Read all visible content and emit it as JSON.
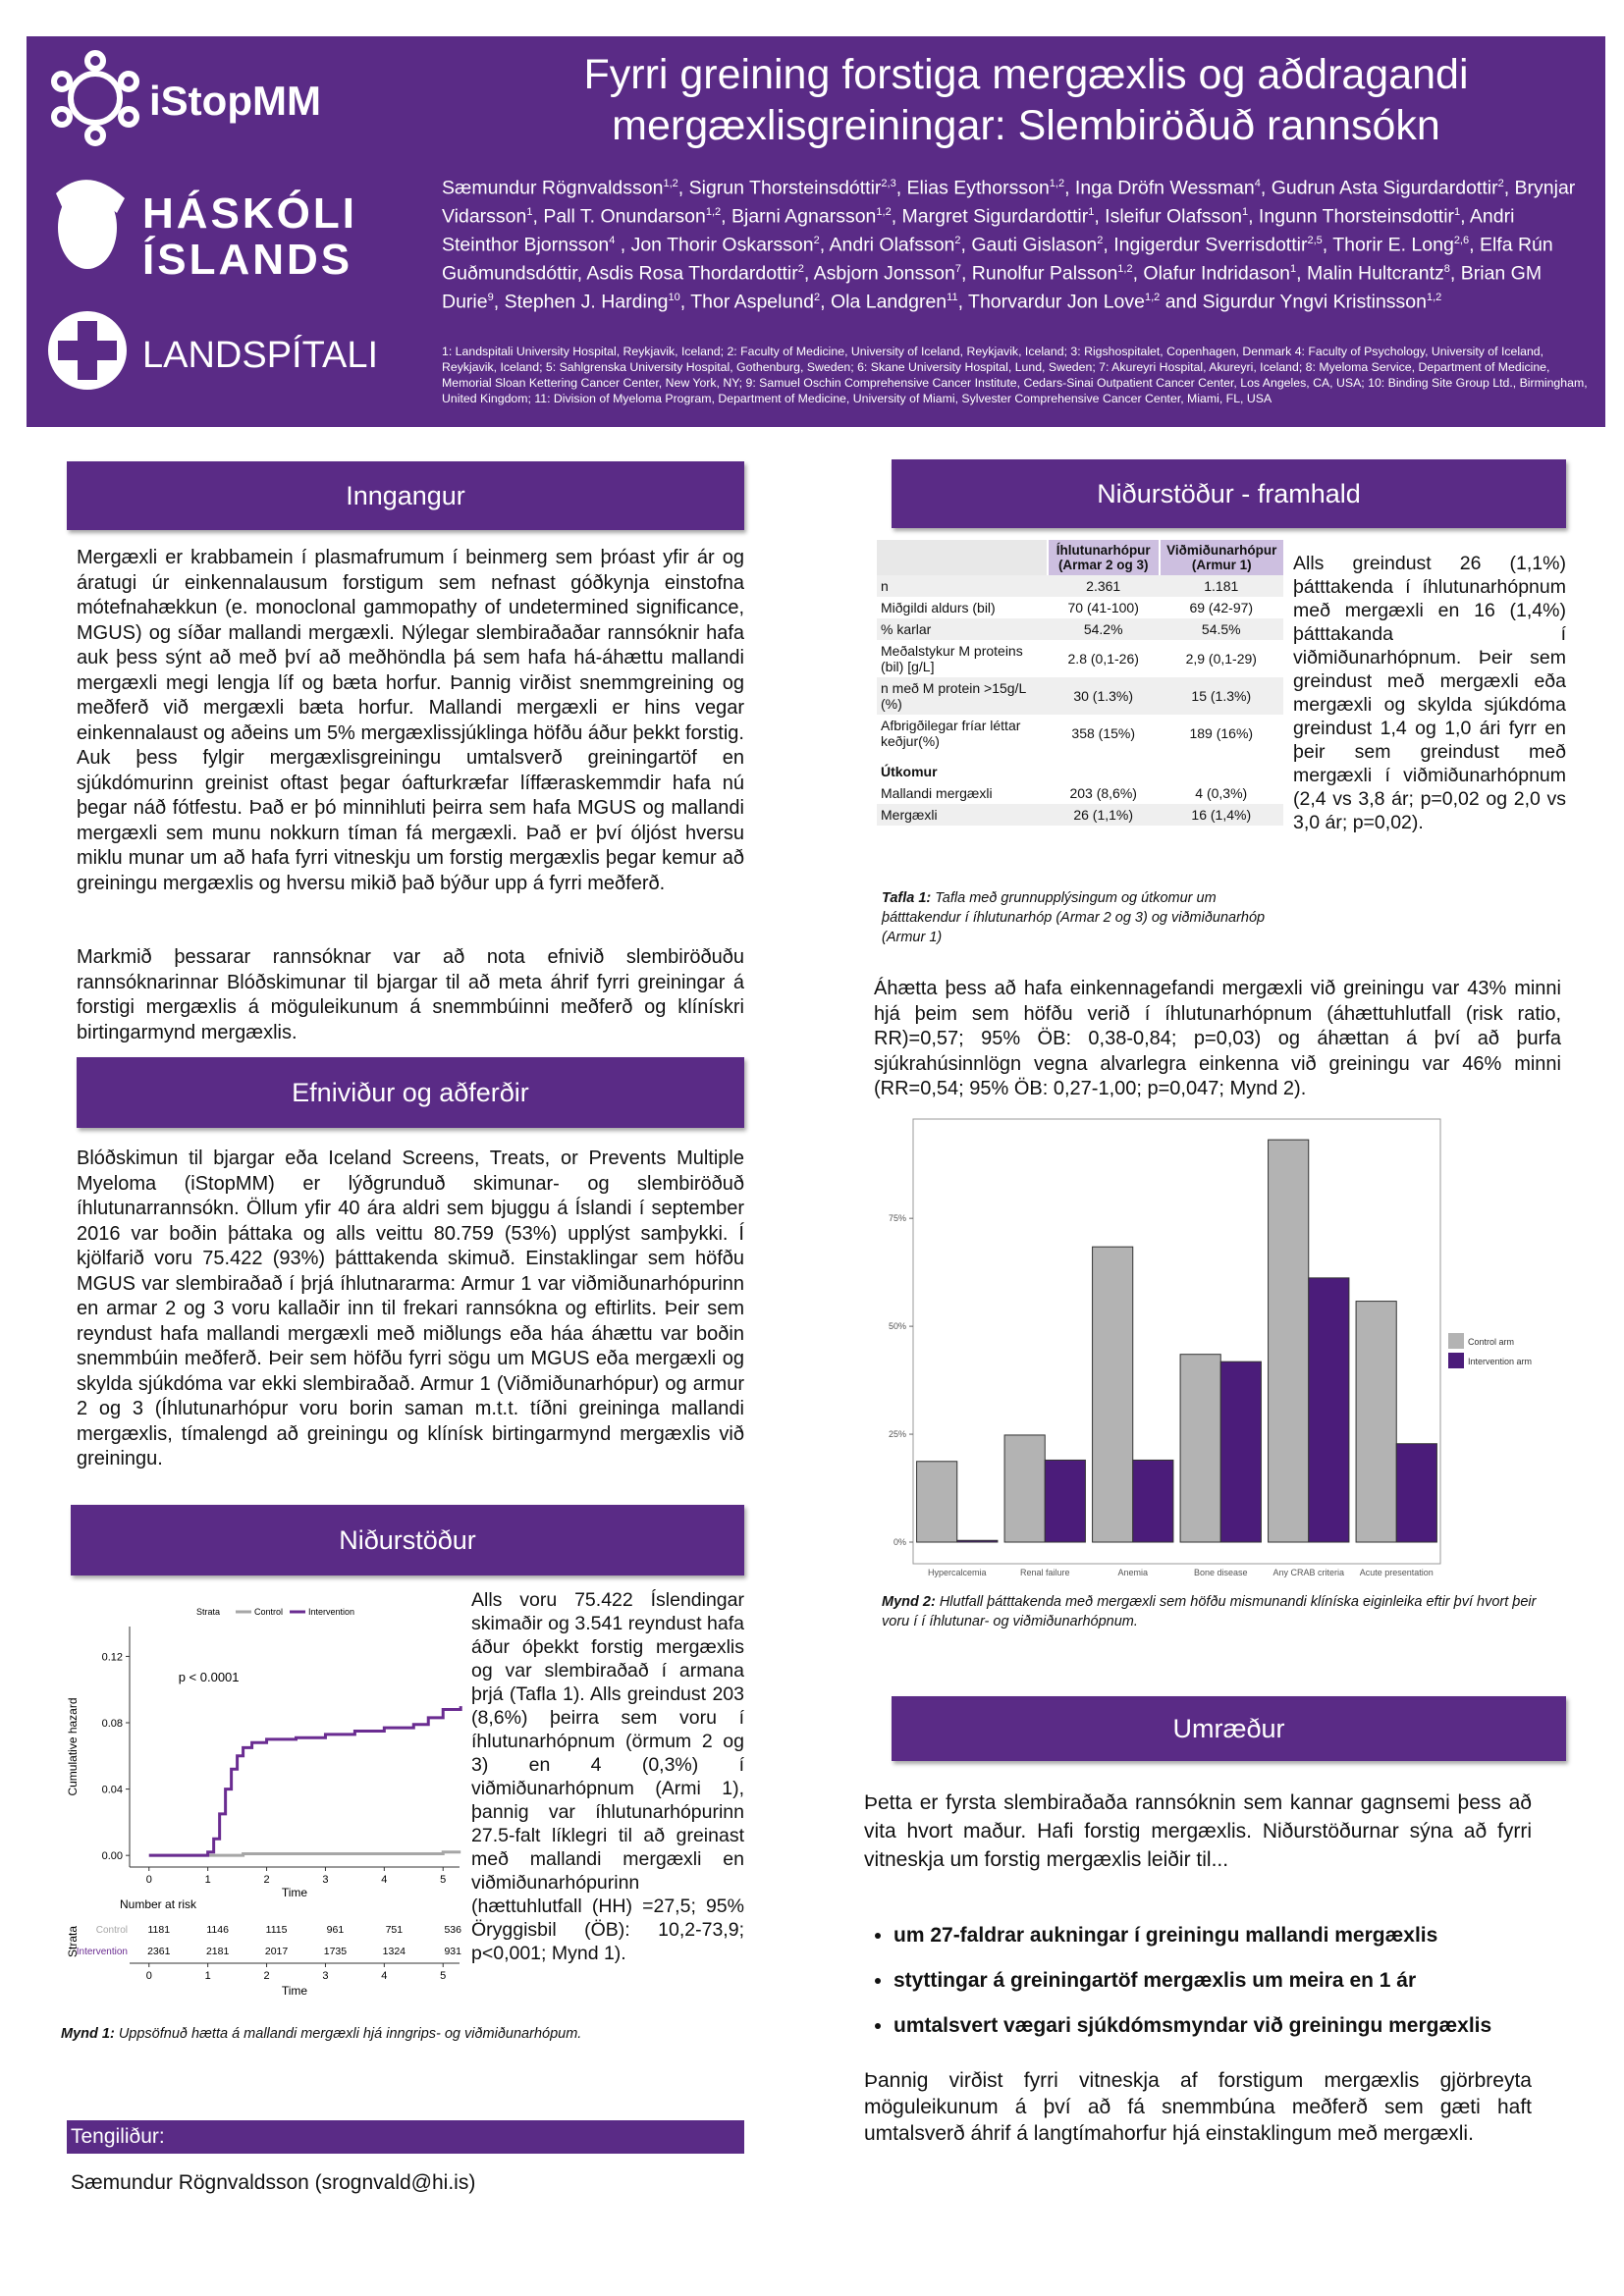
{
  "header": {
    "logos": {
      "istopmm": "iStopMM",
      "university": [
        "HÁSKÓLI",
        "ÍSLANDS"
      ],
      "hospital": "LANDSPÍTALI"
    },
    "title": "Fyrri greining forstiga mergæxlis og aðdragandi mergæxlisgreiningar: Slembiröðuð rannsókn",
    "authors": [
      {
        "text": "Sæmundur Rögnvaldsson",
        "sup": "1,2"
      },
      {
        "text": ", Sigrun Thorsteinsdóttir",
        "sup": "2,3"
      },
      {
        "text": ", Elias Eythorsson",
        "sup": "1,2"
      },
      {
        "text": ", Inga Dröfn Wessman",
        "sup": "4"
      },
      {
        "text": ", Gudrun Asta Sigurdardottir",
        "sup": "2"
      },
      {
        "text": ", Brynjar Vidarsson",
        "sup": "1"
      },
      {
        "text": ", Pall T. Onundarson",
        "sup": "1,2"
      },
      {
        "text": ", Bjarni Agnarsson",
        "sup": "1,2"
      },
      {
        "text": ", Margret Sigurdardottir",
        "sup": "1"
      },
      {
        "text": ", Isleifur Olafsson",
        "sup": "1"
      },
      {
        "text": ", Ingunn Thorsteinsdottir",
        "sup": "1"
      },
      {
        "text": ", Andri Steinthor Bjornsson",
        "sup": "4"
      },
      {
        "text": " , Jon Thorir Oskarsson",
        "sup": "2"
      },
      {
        "text": ", Andri Olafsson",
        "sup": "2"
      },
      {
        "text": ", Gauti Gislason",
        "sup": "2"
      },
      {
        "text": ", Ingigerdur Sverrisdottir",
        "sup": "2,5"
      },
      {
        "text": ", Thorir E. Long",
        "sup": "2,6"
      },
      {
        "text": ", Elfa Rún Guðmundsdóttir"
      },
      {
        "text": ", Asdis Rosa Thordardottir",
        "sup": "2"
      },
      {
        "text": ", Asbjorn Jonsson",
        "sup": "7"
      },
      {
        "text": ", Runolfur Palsson",
        "sup": "1,2"
      },
      {
        "text": ", Olafur Indridason",
        "sup": "1"
      },
      {
        "text": ", Malin Hultcrantz",
        "sup": "8"
      },
      {
        "text": ", Brian GM Durie",
        "sup": "9"
      },
      {
        "text": ", Stephen J. Harding",
        "sup": "10"
      },
      {
        "text": ", Thor Aspelund",
        "sup": "2"
      },
      {
        "text": ", Ola Landgren",
        "sup": "11"
      },
      {
        "text": ", Thorvardur Jon Love",
        "sup": "1,2"
      },
      {
        "text": " and Sigurdur Yngvi Kristinsson",
        "sup": "1,2"
      }
    ],
    "affiliations": "1: Landspitali University Hospital, Reykjavik, Iceland; 2: Faculty of Medicine, University of Iceland, Reykjavik, Iceland; 3: Rigshospitalet, Copenhagen, Denmark 4: Faculty of Psychology, University of Iceland, Reykjavik, Iceland; 5: Sahlgrenska University Hospital, Gothenburg, Sweden; 6: Skane University Hospital, Lund, Sweden; 7: Akureyri Hospital, Akureyri, Iceland; 8: Myeloma Service, Department of Medicine, Memorial Sloan Kettering Cancer Center, New York, NY; 9: Samuel Oschin Comprehensive Cancer Institute, Cedars-Sinai Outpatient Cancer Center, Los Angeles, CA, USA; 10: Binding Site Group Ltd., Birmingham, United Kingdom; 11: Division of Myeloma Program, Department of Medicine, University of Miami, Sylvester Comprehensive Cancer Center, Miami, FL, USA"
  },
  "intro": {
    "heading": "Inngangur",
    "paragraphs": [
      "Mergæxli er krabbamein í plasmafrumum í beinmerg sem þróast yfir ár og áratugi úr einkennalausum forstigum sem nefnast góðkynja einstofna mótefnahækkun (e. monoclonal gammopathy of undetermined significance, MGUS) og síðar mallandi mergæxli. Nýlegar slembiraðaðar rannsóknir hafa auk þess sýnt að með því að meðhöndla þá sem hafa há-áhættu mallandi mergæxli megi lengja líf og bæta horfur. Þannig virðist snemmgreining og meðferð við mergæxli bæta horfur. Mallandi mergæxli er hins vegar einkennalaust og aðeins um 5% mergæxlissjúklinga höfðu áður þekkt forstig. Auk þess fylgir mergæxlisgreiningu umtalsverð greiningartöf en sjúkdómurinn greinist oftast þegar óafturkræfar líffæraskemmdir hafa nú þegar náð fótfestu. Það er þó minnihluti þeirra sem hafa MGUS og mallandi mergæxli sem munu nokkurn tíman fá mergæxli. Það er því óljóst hversu miklu munar um að hafa fyrri vitneskju um forstig mergæxlis þegar kemur að greiningu mergæxlis og hversu mikið það býður upp á fyrri meðferð.",
      "Markmið þessarar rannsóknar var að nota efnivið slembiröðuðu rannsóknarinnar Blóðskimunar til bjargar til að meta áhrif fyrri greiningar á forstigi mergæxlis á möguleikunum á snemmbúinni meðferð og klínískri birtingarmynd mergæxlis."
    ]
  },
  "methods": {
    "heading": "Efniviður og aðferðir",
    "paragraphs": [
      "Blóðskimun til bjargar eða Iceland Screens, Treats, or Prevents Multiple Myeloma (iStopMM) er lýðgrunduð skimunar- og slembiröðuð íhlutunarrannsókn. Öllum yfir 40 ára aldri sem bjuggu á Íslandi í september 2016 var boðin þáttaka og alls veittu 80.759 (53%) upplýst samþykki. Í kjölfarið voru 75.422 (93%) þátttakenda skimuð. Einstaklingar sem höfðu MGUS var slembiraðað í þrjá íhlutnararma: Armur 1 var viðmiðunarhópurinn en armar 2 og 3 voru kallaðir inn til frekari rannsókna og eftirlits. Þeir sem reyndust hafa mallandi mergæxli með miðlungs eða háa áhættu var boðin snemmbúin meðferð. Þeir sem höfðu fyrri sögu um MGUS eða mergæxli og skylda sjúkdóma var ekki slembiraðað. Armur 1 (Viðmiðunarhópur) og armur 2 og 3 (Íhlutunarhópur voru borin saman m.t.t. tíðni greininga mallandi mergæxlis, tímalengd að greiningu og klínísk birtingarmynd mergæxlis við greiningu."
    ]
  },
  "results": {
    "heading": "Niðurstöður",
    "text": "Alls voru 75.422 Íslendingar skimaðir og 3.541 reyndust hafa áður óþekkt forstig mergæxlis og var slembiraðað í armana þrjá (Tafla 1). Alls greindust 203 (8,6%) þeirra sem voru í íhlutunarhópnum (örmum 2 og 3) en 4 (0,3%) í viðmiðunarhópnum (Armi 1), þannig var íhlutunarhópurinn 27.5-falt líklegri til að greinast með mallandi mergæxli en viðmiðunarhópurinn (hættuhlutfall (HH) =27,5; 95% Öryggisbil (ÖB): 10,2-73,9; p<0,001; Mynd 1).",
    "figure_caption": {
      "label": "Mynd 1:",
      "text": "Uppsöfnuð hætta á mallandi mergæxli hjá inngrips- og viðmiðunarhópum."
    }
  },
  "results_cont": {
    "heading": "Niðurstöður - framhald",
    "text": "Alls greindust 26 (1,1%) þátttakenda í íhlutunarhópnum með mergæxli en 16 (1,4%) þátttakanda í viðmiðunarhópnum. Þeir sem greindust með mergæxli eða mergæxli og skylda sjúkdóma greindust 1,4 og 1,0 ári fyrr en þeir sem greindust með mergæxli í viðmiðunarhópnum (2,4 vs 3,8 ár; p=0,02 og 2,0 vs 3,0 ár; p=0,02).",
    "table": {
      "columns": [
        "Íhlutunarhópur (Armar 2 og 3)",
        "Viðmiðunarhópur (Armur 1)"
      ],
      "rows": [
        [
          "n",
          "2.361",
          "1.181"
        ],
        [
          "Miðgildi aldurs (bil)",
          "70 (41-100)",
          "69 (42-97)"
        ],
        [
          "% karlar",
          "54.2%",
          "54.5%"
        ],
        [
          "Meðalstykur M proteins (bil) [g/L]",
          "2.8 (0,1-26)",
          "2,9 (0,1-29)"
        ],
        [
          "n með M protein >15g/L (%)",
          "30 (1.3%)",
          "15 (1.3%)"
        ],
        [
          "Afbrigðilegar fríar léttar keðjur(%)",
          "358 (15%)",
          "189 (16%)"
        ],
        [
          "Útkomur"
        ],
        [
          "Mallandi mergæxli",
          "203 (8,6%)",
          "4 (0,3%)"
        ],
        [
          "Mergæxli",
          "26 (1,1%)",
          "16 (1,4%)"
        ]
      ]
    },
    "table_caption": {
      "label": "Tafla 1:",
      "text": "Tafla með grunnupplýsingum og útkomur um þátttakendur í íhlutunarhóp (Armar 2 og 3) og viðmiðunarhóp (Armur 1)"
    },
    "paragraph": "Áhætta þess að hafa einkennagefandi mergæxli við greiningu var 43% minni hjá þeim sem höfðu verið í íhlutunarhópnum (áhættuhlutfall (risk ratio, RR)=0,57; 95% ÖB: 0,38-0,84; p=0,03) og áhættan á því að þurfa sjúkrahúsinnlögn vegna alvarlegra einkenna við greiningu var 46% minni (RR=0,54; 95% ÖB: 0,27-1,00; p=0,047; Mynd 2).",
    "figure_caption": {
      "label": "Mynd 2:",
      "text": "Hlutfall þátttakenda með mergæxli sem höfðu mismunandi klíníska eiginleika eftir því hvort þeir voru í í íhlutunar- og viðmiðunarhópnum."
    }
  },
  "discussion": {
    "heading": "Umræður",
    "intro": "Þetta er fyrsta slembiraðaða rannsóknin sem kannar gagnsemi þess að vita hvort maður. Hafi forstig mergæxlis. Niðurstöðurnar sýna að fyrri vitneskja um forstig mergæxlis leiðir til...",
    "bullets": [
      "um 27-faldrar aukningar í greiningu mallandi mergæxlis",
      "styttingar á greiningartöf mergæxlis um meira en 1 ár",
      "umtalsvert vægari sjúkdómsmyndar við greiningu mergæxlis"
    ],
    "conclusion": "Þannig virðist fyrri vitneskja af forstigum mergæxlis gjörbreyta möguleikunum á því að fá snemmbúna meðferð sem gæti haft umtalsverð áhrif á langtímahorfur hjá einstaklingum með mergæxli."
  },
  "contact": {
    "heading": "Tengiliður:",
    "text": "Sæmundur Rögnvaldsson (srognvald@hi.is)"
  },
  "chart_data": [
    {
      "type": "line",
      "step": true,
      "legend_title": "Strata",
      "p_label": "p < 0.0001",
      "xlabel": "Time",
      "ylabel": "Cumulative hazard",
      "x": [
        0,
        0.8,
        1,
        1.1,
        1.2,
        1.3,
        1.4,
        1.5,
        1.6,
        1.75,
        2,
        2.5,
        3,
        3.5,
        4,
        4.5,
        4.75,
        5,
        5.3
      ],
      "series": [
        {
          "name": "Control",
          "color": "#a6a6a6",
          "values": [
            0,
            0,
            0,
            0,
            0,
            0,
            0,
            0,
            0.001,
            0.001,
            0.001,
            0.001,
            0.001,
            0.001,
            0.001,
            0.001,
            0.001,
            0.002,
            0.002
          ]
        },
        {
          "name": "Intervention",
          "color": "#6a2c91",
          "values": [
            0,
            0,
            0.002,
            0.01,
            0.025,
            0.04,
            0.052,
            0.06,
            0.065,
            0.068,
            0.07,
            0.071,
            0.073,
            0.075,
            0.077,
            0.079,
            0.083,
            0.088,
            0.09
          ]
        }
      ],
      "xlim": [
        -0.33,
        5.28
      ],
      "ylim": [
        -0.007,
        0.138
      ],
      "xticks": [
        0,
        1,
        2,
        3,
        4,
        5
      ],
      "yticks": [
        {
          "value": 0,
          "label": "0.00"
        },
        {
          "value": 0.04,
          "label": "0.04"
        },
        {
          "value": 0.08,
          "label": "0.08"
        },
        {
          "value": 0.12,
          "label": "0.12"
        }
      ],
      "risk_table": {
        "title": "Number at risk",
        "ylabel": "Strata",
        "xlabel": "Time",
        "xticks": [
          0,
          1,
          2,
          3,
          4,
          5
        ],
        "rows": [
          {
            "name": "Control",
            "color": "#a6a6a6",
            "values": [
              1181,
              1146,
              1115,
              961,
              751,
              536
            ]
          },
          {
            "name": "Intervention",
            "color": "#6a2c91",
            "values": [
              2361,
              2181,
              2017,
              1735,
              1324,
              931
            ]
          }
        ]
      }
    },
    {
      "type": "bar",
      "categories": [
        "Hypercalcemia",
        "Renal failure",
        "Anemia",
        "Bone disease",
        "Any CRAB criteria",
        "Acute presentation"
      ],
      "series": [
        {
          "name": "Control arm",
          "color": "#b3b3b3",
          "values": [
            18.7,
            24.8,
            68.4,
            43.5,
            93.2,
            55.8
          ]
        },
        {
          "name": "Intervention arm",
          "color": "#4b1c7a",
          "values": [
            0.4,
            19,
            19,
            41.8,
            61.2,
            22.8
          ]
        }
      ],
      "ylim": [
        -5,
        98
      ],
      "yticks": [
        {
          "value": 0,
          "label": "0%"
        },
        {
          "value": 25,
          "label": "25%"
        },
        {
          "value": 50,
          "label": "50%"
        },
        {
          "value": 75,
          "label": "75%"
        }
      ],
      "grid": false,
      "legend": "right"
    }
  ]
}
